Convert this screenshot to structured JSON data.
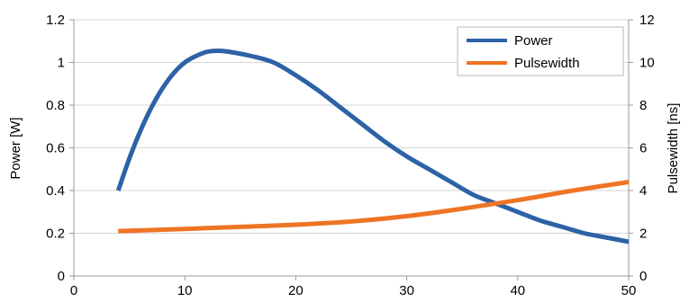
{
  "chart_data": {
    "type": "line",
    "title": "",
    "xlabel": "",
    "ylabel": "Power [W]",
    "y2label": "Pulsewidth [ns]",
    "xlim": [
      0,
      50
    ],
    "ylim": [
      0,
      1.2
    ],
    "y2lim": [
      0,
      12
    ],
    "x_ticks": [
      0,
      10,
      20,
      30,
      40,
      50
    ],
    "y_ticks": [
      0,
      0.2,
      0.4,
      0.6,
      0.8,
      1,
      1.2
    ],
    "y2_ticks": [
      0,
      2,
      4,
      6,
      8,
      10,
      12
    ],
    "grid": true,
    "legend_position": "top-right",
    "colors": {
      "power": "#2d62a6",
      "pulsewidth": "#ee7424",
      "grid": "#d6d6d6",
      "axis": "#9a9a9a"
    },
    "series": [
      {
        "name": "Power",
        "axis": "left",
        "x": [
          4,
          5,
          6,
          7,
          8,
          9,
          10,
          11,
          12,
          13,
          14,
          16,
          18,
          20,
          22,
          24,
          26,
          28,
          30,
          32,
          34,
          36,
          38,
          40,
          42,
          44,
          46,
          48,
          50
        ],
        "values": [
          0.4,
          0.55,
          0.68,
          0.79,
          0.88,
          0.95,
          1.0,
          1.03,
          1.05,
          1.055,
          1.05,
          1.03,
          1.0,
          0.94,
          0.87,
          0.79,
          0.71,
          0.63,
          0.56,
          0.5,
          0.44,
          0.38,
          0.34,
          0.3,
          0.26,
          0.23,
          0.2,
          0.18,
          0.16
        ]
      },
      {
        "name": "Pulsewidth",
        "axis": "right",
        "x": [
          4,
          10,
          15,
          20,
          25,
          30,
          35,
          40,
          45,
          50
        ],
        "values": [
          2.1,
          2.2,
          2.3,
          2.4,
          2.55,
          2.8,
          3.15,
          3.55,
          4.0,
          4.4
        ]
      }
    ]
  }
}
